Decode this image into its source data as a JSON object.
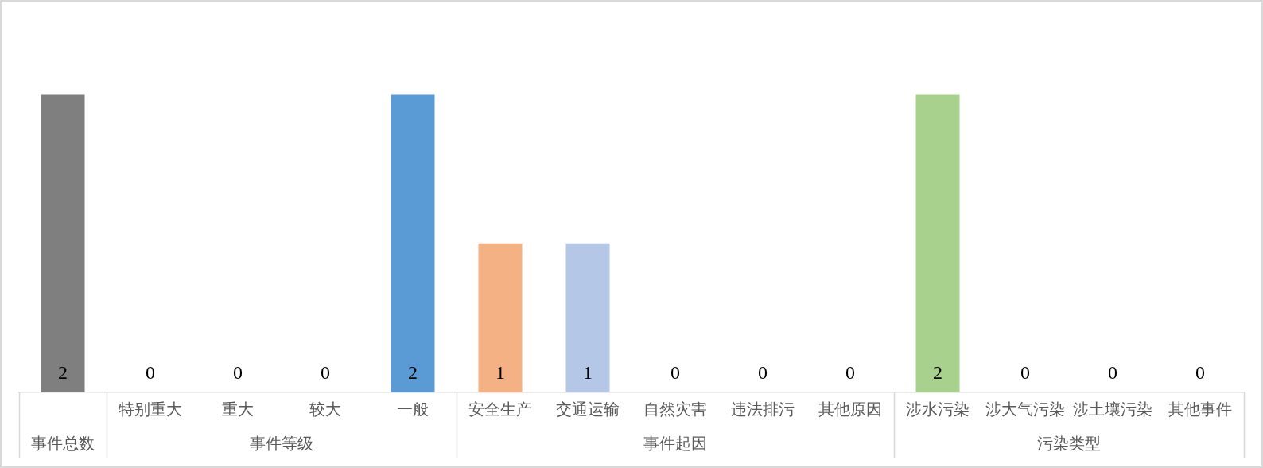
{
  "chart_data": {
    "type": "bar",
    "categories": [
      null,
      "特别重大",
      "重大",
      "较大",
      "一般",
      "安全生产",
      "交通运输",
      "自然灾害",
      "违法排污",
      "其他原因",
      "涉水污染",
      "涉大气污染",
      "涉土壤污染",
      "其他事件"
    ],
    "values": [
      2,
      0,
      0,
      0,
      2,
      1,
      1,
      0,
      0,
      0,
      2,
      0,
      0,
      0
    ],
    "colors": [
      "#7f7f7f",
      null,
      null,
      null,
      "#5b9bd5",
      "#f4b183",
      "#b4c7e7",
      null,
      null,
      null,
      "#a9d18e",
      null,
      null,
      null
    ],
    "tick_labels": "x",
    "data_labels": true,
    "annotations": [
      "事件总数",
      "事件等级",
      "事件起因",
      "污染类型"
    ]
  }
}
